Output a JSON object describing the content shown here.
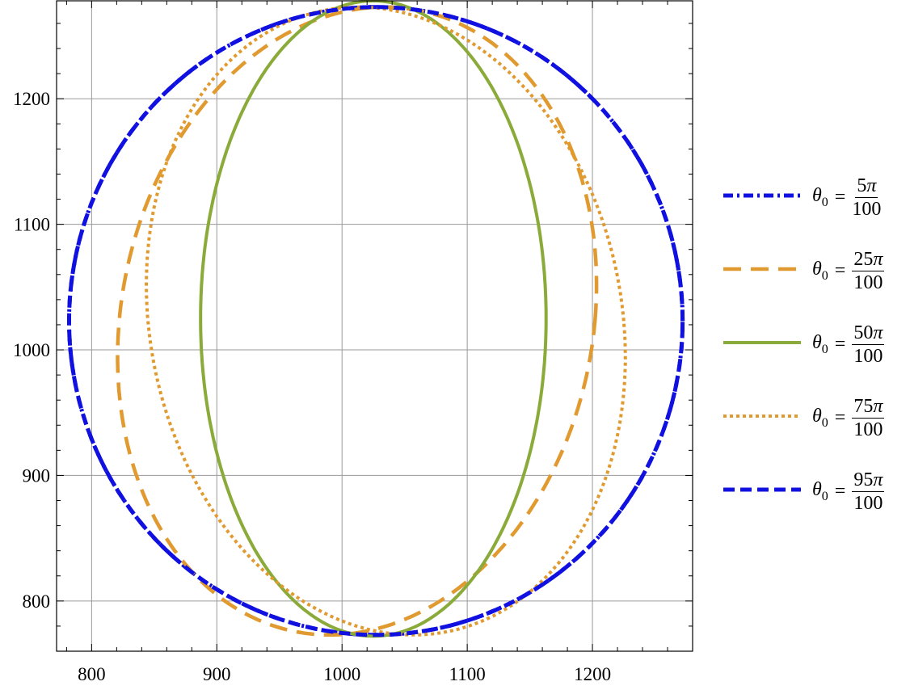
{
  "chart_data": {
    "type": "line",
    "title": "",
    "xlabel": "",
    "ylabel": "",
    "xlim": [
      772,
      1280
    ],
    "ylim": [
      760,
      1278
    ],
    "xticks": [
      800,
      900,
      1000,
      1100,
      1200
    ],
    "yticks": [
      800,
      900,
      1000,
      1100,
      1200
    ],
    "xtick_labels": [
      "800",
      "900",
      "1000",
      "1100",
      "1200"
    ],
    "ytick_labels": [
      "800",
      "900",
      "1000",
      "1100",
      "1200"
    ],
    "grid": true,
    "legend_position": "right",
    "series": [
      {
        "name_lhs": "θ",
        "name_sub": "0",
        "name_eq": "=",
        "name_num": "5",
        "name_pi": "π",
        "name_den": "100",
        "color": "#1010e0",
        "style": "dashdot",
        "cx": 1027,
        "cy": 1023,
        "rx": 245,
        "ry": 250,
        "skew": 0
      },
      {
        "name_lhs": "θ",
        "name_sub": "0",
        "name_eq": "=",
        "name_num": "25",
        "name_pi": "π",
        "name_den": "100",
        "color": "#e09a30",
        "style": "longdash",
        "cx": 1012,
        "cy": 1023,
        "rx": 190,
        "ry": 250,
        "skew": 22
      },
      {
        "name_lhs": "θ",
        "name_sub": "0",
        "name_eq": "=",
        "name_num": "50",
        "name_pi": "π",
        "name_den": "100",
        "color": "#8aab3a",
        "style": "solid",
        "cx": 1025,
        "cy": 1025,
        "rx": 138,
        "ry": 253,
        "skew": 0
      },
      {
        "name_lhs": "θ",
        "name_sub": "0",
        "name_eq": "=",
        "name_num": "75",
        "name_pi": "π",
        "name_den": "100",
        "color": "#e09a30",
        "style": "dotted",
        "cx": 1035,
        "cy": 1023,
        "rx": 190,
        "ry": 250,
        "skew": -22
      },
      {
        "name_lhs": "θ",
        "name_sub": "0",
        "name_eq": "=",
        "name_num": "95",
        "name_pi": "π",
        "name_den": "100",
        "color": "#1010e0",
        "style": "dashed",
        "cx": 1027,
        "cy": 1023,
        "rx": 245,
        "ry": 250,
        "skew": 0
      }
    ]
  }
}
